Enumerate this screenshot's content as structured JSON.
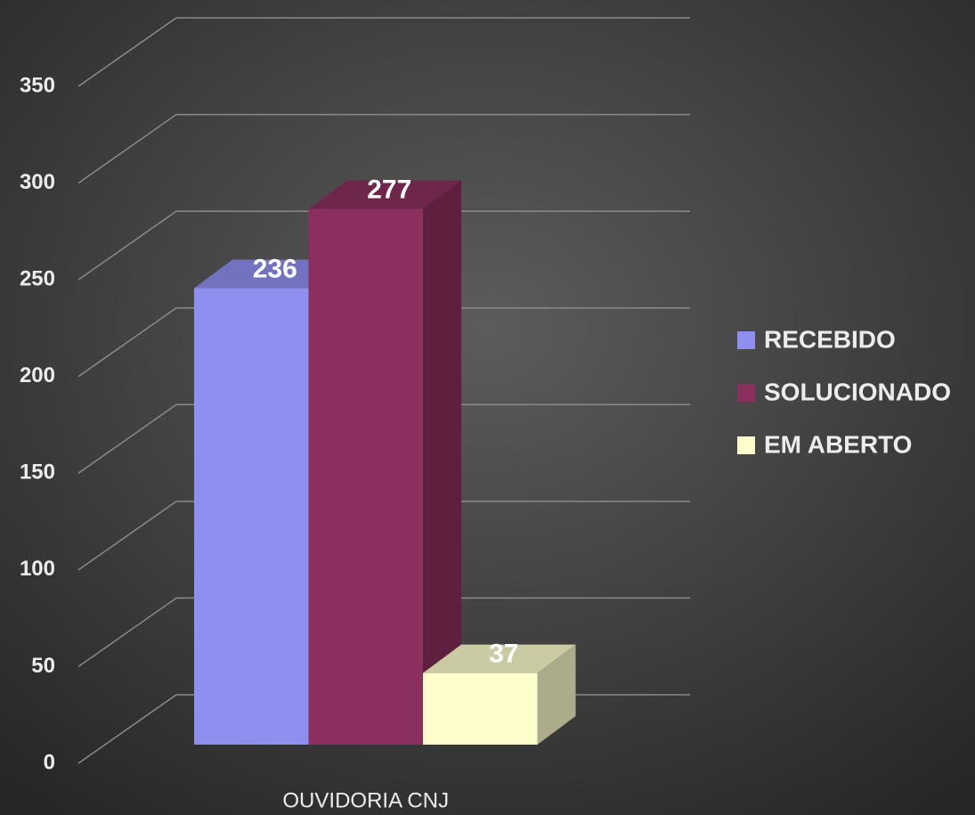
{
  "chart_data": {
    "type": "bar3d",
    "categories": [
      "OUVIDORIA CNJ"
    ],
    "series": [
      {
        "name": "RECEBIDO",
        "color": "#8f8ff0",
        "values": [
          236
        ]
      },
      {
        "name": "SOLUCIONADO",
        "color": "#8b2f5e",
        "values": [
          277
        ]
      },
      {
        "name": "EM ABERTO",
        "color": "#fdfdcc",
        "values": [
          37
        ]
      }
    ],
    "ylim": [
      0,
      350
    ],
    "yticks": [
      0,
      50,
      100,
      150,
      200,
      250,
      300,
      350
    ],
    "grid": true,
    "legend": "right",
    "data_labels": true
  }
}
